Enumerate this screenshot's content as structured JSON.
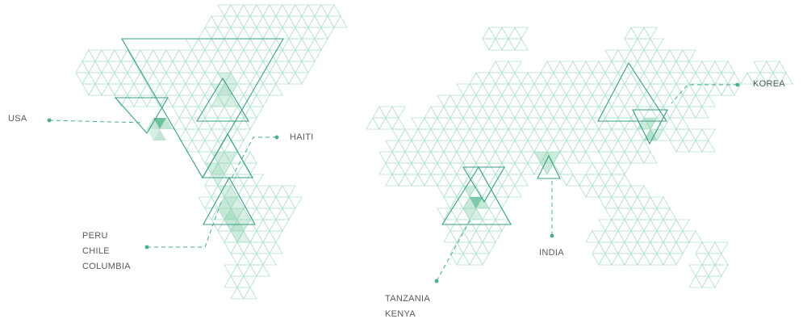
{
  "colors": {
    "grid_stroke": "#b4e2cd",
    "accent": "#4aae8c",
    "outline": "#3a9e88",
    "highlight_fill": "#8fd2b0",
    "highlight_strong": "#5dbb95",
    "label_text": "#555c5c"
  },
  "regions": {
    "usa": {
      "label": "USA"
    },
    "haiti": {
      "label": "HAITI"
    },
    "korea": {
      "label": "KOREA"
    },
    "latin_america": {
      "labels": [
        "PERU",
        "CHILE",
        "COLUMBIA"
      ]
    },
    "india": {
      "label": "INDIA"
    },
    "east_africa": {
      "labels": [
        "TANZANIA",
        "KENYA"
      ]
    }
  }
}
